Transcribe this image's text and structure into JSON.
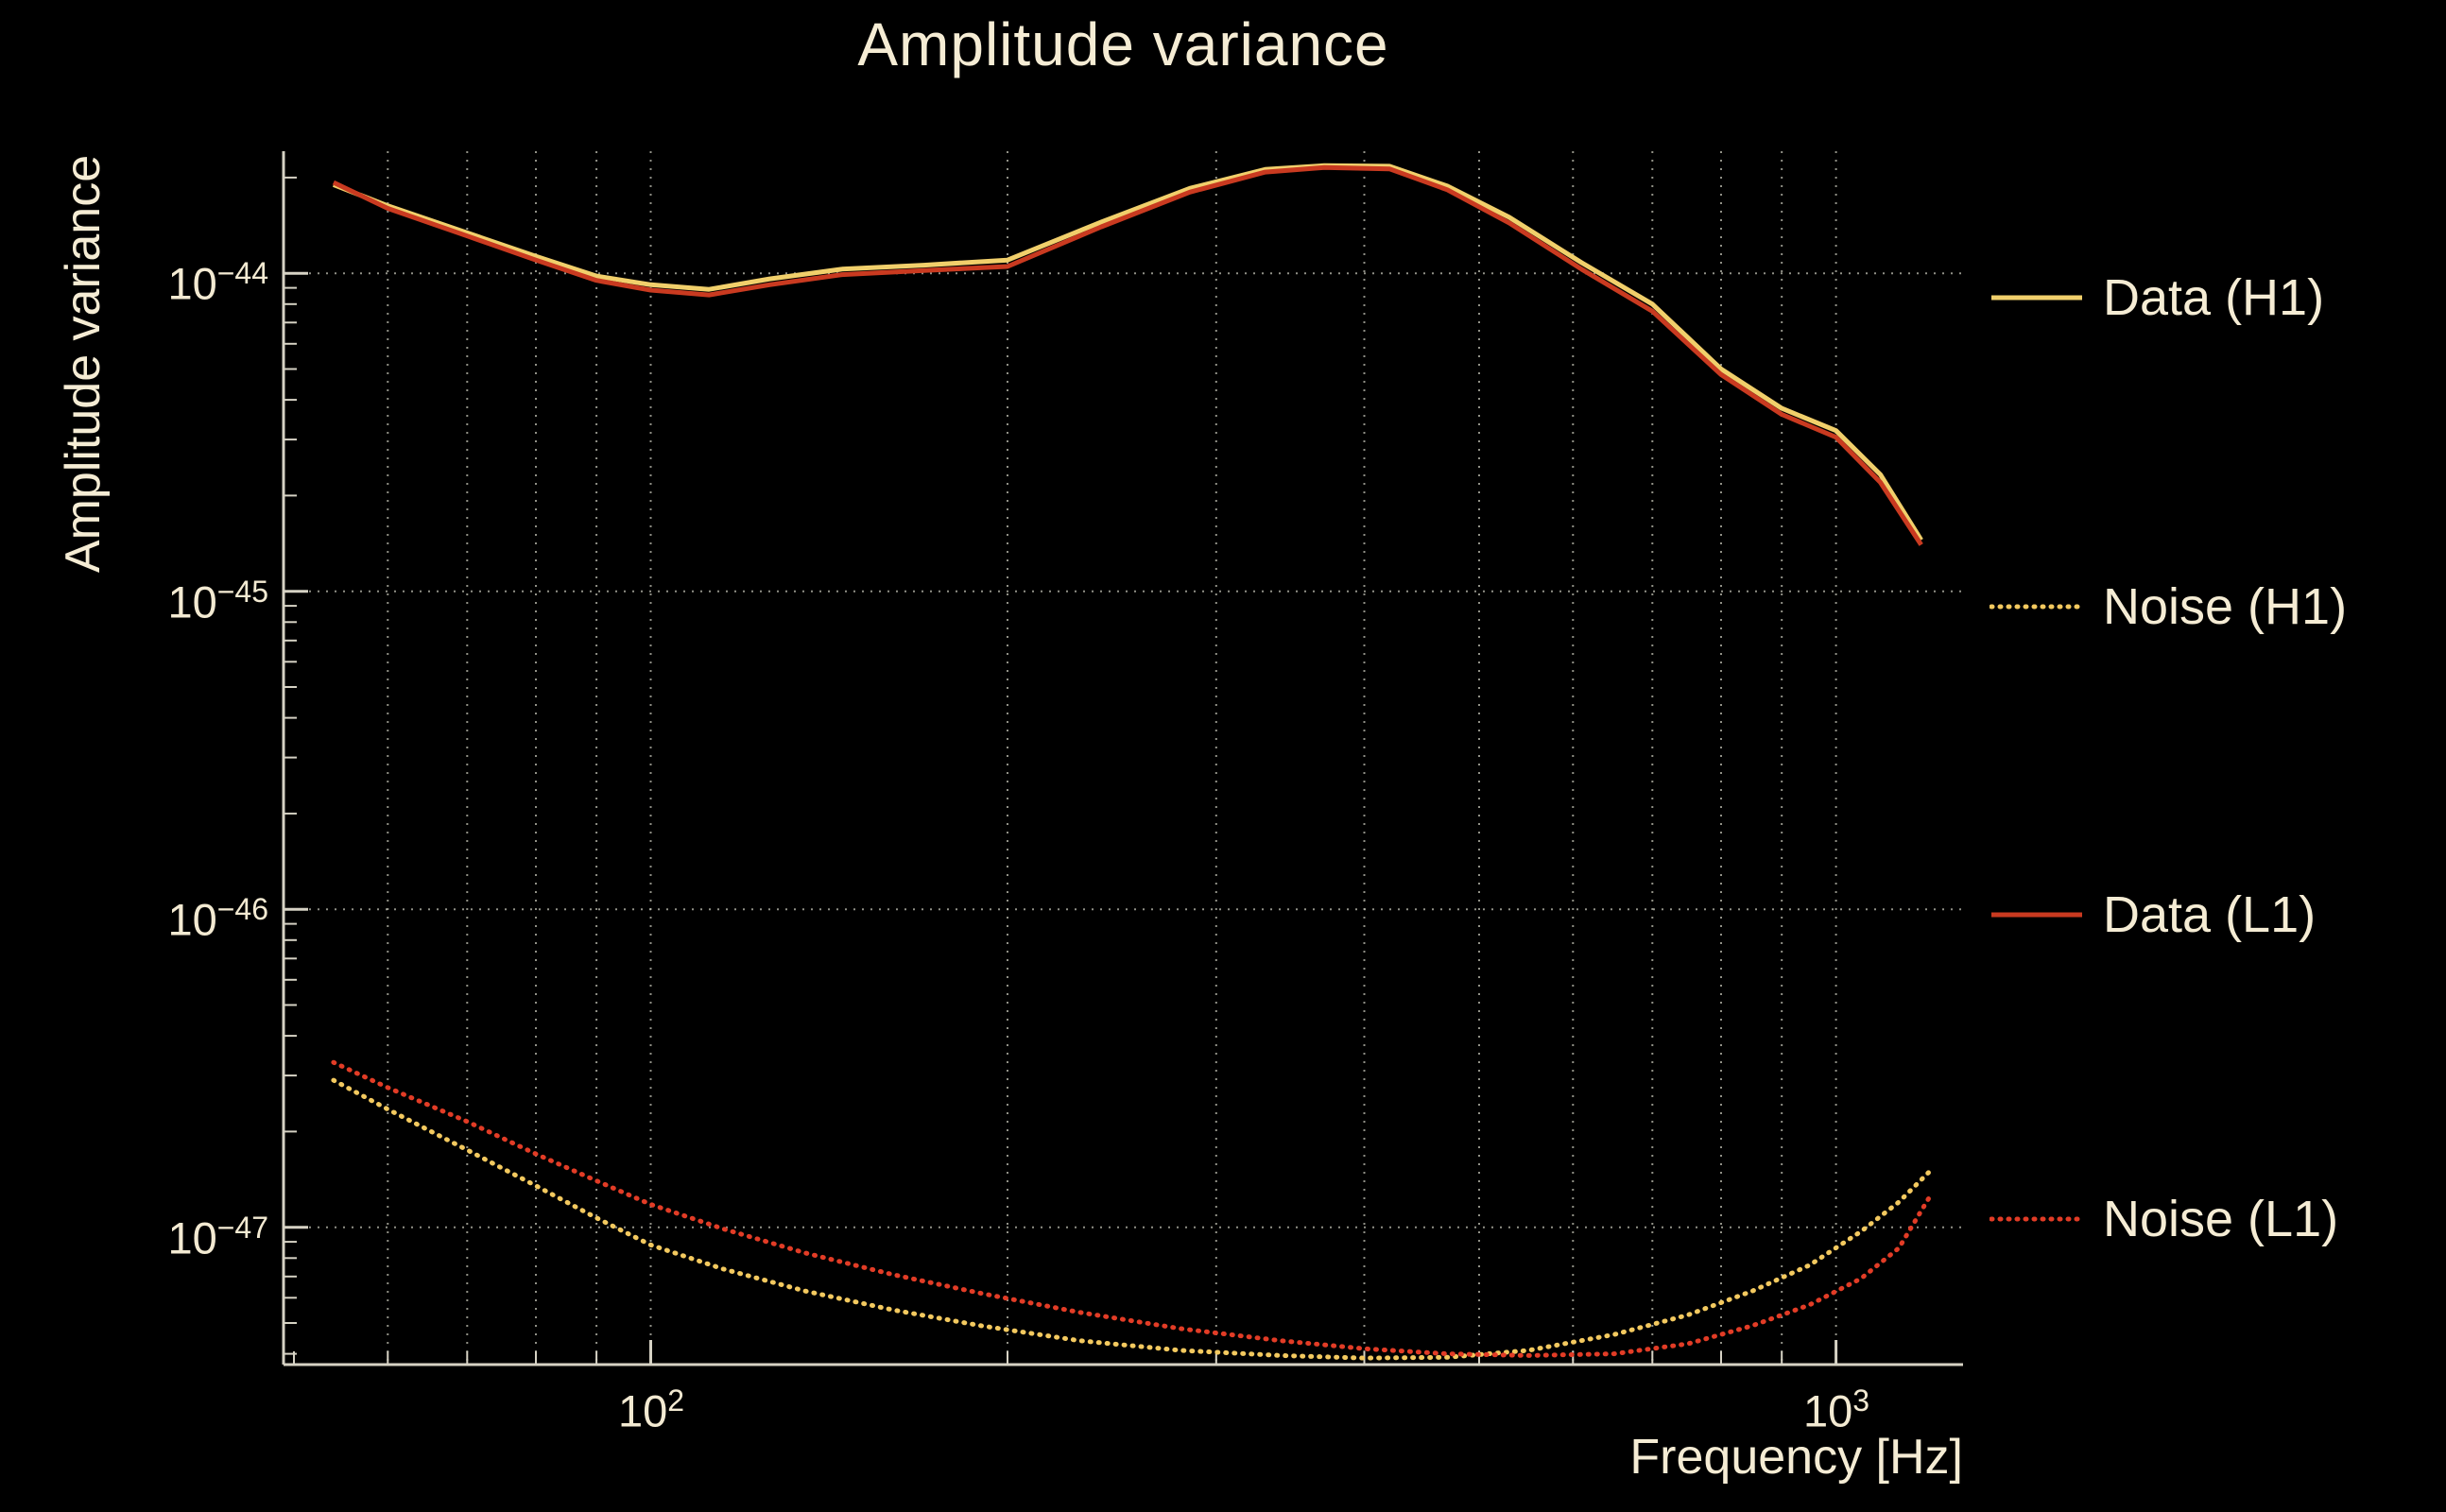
{
  "chart_data": {
    "type": "line",
    "title": "Amplitude variance",
    "xlabel": "Frequency [Hz]",
    "ylabel": "Amplitude variance",
    "x_scale": "log",
    "y_scale": "log",
    "xlim": [
      49,
      1280
    ],
    "ylim": [
      3.7e-48,
      2.42e-44
    ],
    "background": "#000000",
    "text_color": "#f5ecd4",
    "axis_color": "#d6d2c4",
    "grid_color": "#c2c2b4",
    "grid_style": "dotted",
    "legend_position": "right-outside",
    "x_major_ticks": [
      100,
      1000
    ],
    "x_minor_ticks": [
      50,
      60,
      70,
      80,
      90,
      200,
      300,
      400,
      500,
      600,
      700,
      800,
      900
    ],
    "x_gridlines": [
      60,
      70,
      80,
      90,
      100,
      200,
      300,
      400,
      500,
      600,
      700,
      800,
      900,
      1000
    ],
    "y_major_ticks": [
      1e-44,
      1e-45,
      1e-46,
      1e-47
    ],
    "legend": [
      "Data (H1)",
      "Noise (H1)",
      "Data (L1)",
      "Noise (L1)"
    ],
    "series": [
      {
        "name": "Data (H1)",
        "color": "#f1cf6b",
        "style": "solid",
        "points": [
          [
            54,
            1.9e-44
          ],
          [
            60,
            1.63e-44
          ],
          [
            70,
            1.34e-44
          ],
          [
            80,
            1.13e-44
          ],
          [
            90,
            9.8e-45
          ],
          [
            100,
            9.2e-45
          ],
          [
            112,
            8.9e-45
          ],
          [
            126,
            9.6e-45
          ],
          [
            145,
            1.03e-44
          ],
          [
            170,
            1.06e-44
          ],
          [
            200,
            1.1e-44
          ],
          [
            240,
            1.45e-44
          ],
          [
            285,
            1.85e-44
          ],
          [
            330,
            2.12e-44
          ],
          [
            370,
            2.18e-44
          ],
          [
            420,
            2.17e-44
          ],
          [
            470,
            1.88e-44
          ],
          [
            530,
            1.5e-44
          ],
          [
            610,
            1.08e-44
          ],
          [
            700,
            8e-45
          ],
          [
            800,
            5e-45
          ],
          [
            900,
            3.76e-45
          ],
          [
            1000,
            3.2e-45
          ],
          [
            1090,
            2.33e-45
          ],
          [
            1180,
            1.45e-45
          ]
        ]
      },
      {
        "name": "Noise (H1)",
        "color": "#f3c95f",
        "style": "dotted",
        "points": [
          [
            54,
            2.9e-47
          ],
          [
            60,
            2.35e-47
          ],
          [
            70,
            1.75e-47
          ],
          [
            80,
            1.35e-47
          ],
          [
            90,
            1.07e-47
          ],
          [
            100,
            8.8e-48
          ],
          [
            115,
            7.4e-48
          ],
          [
            135,
            6.3e-48
          ],
          [
            160,
            5.5e-48
          ],
          [
            190,
            4.9e-48
          ],
          [
            230,
            4.4e-48
          ],
          [
            280,
            4.1e-48
          ],
          [
            340,
            3.95e-48
          ],
          [
            400,
            3.88e-48
          ],
          [
            470,
            3.9e-48
          ],
          [
            550,
            4.1e-48
          ],
          [
            650,
            4.6e-48
          ],
          [
            750,
            5.3e-48
          ],
          [
            850,
            6.3e-48
          ],
          [
            950,
            7.6e-48
          ],
          [
            1050,
            9.7e-48
          ],
          [
            1130,
            1.2e-47
          ],
          [
            1200,
            1.5e-47
          ]
        ]
      },
      {
        "name": "Data (L1)",
        "color": "#c93a20",
        "style": "solid",
        "points": [
          [
            54,
            1.93e-44
          ],
          [
            60,
            1.6e-44
          ],
          [
            70,
            1.31e-44
          ],
          [
            80,
            1.1e-44
          ],
          [
            90,
            9.5e-45
          ],
          [
            100,
            8.85e-45
          ],
          [
            112,
            8.55e-45
          ],
          [
            126,
            9.2e-45
          ],
          [
            145,
            9.9e-45
          ],
          [
            170,
            1.02e-44
          ],
          [
            200,
            1.05e-44
          ],
          [
            240,
            1.4e-44
          ],
          [
            285,
            1.8e-44
          ],
          [
            330,
            2.08e-44
          ],
          [
            370,
            2.15e-44
          ],
          [
            420,
            2.13e-44
          ],
          [
            470,
            1.83e-44
          ],
          [
            530,
            1.44e-44
          ],
          [
            610,
            1.03e-44
          ],
          [
            700,
            7.6e-45
          ],
          [
            800,
            4.8e-45
          ],
          [
            900,
            3.6e-45
          ],
          [
            1000,
            3.05e-45
          ],
          [
            1090,
            2.2e-45
          ],
          [
            1180,
            1.4e-45
          ]
        ]
      },
      {
        "name": "Noise (L1)",
        "color": "#e23c26",
        "style": "dotted",
        "points": [
          [
            54,
            3.3e-47
          ],
          [
            60,
            2.75e-47
          ],
          [
            70,
            2.15e-47
          ],
          [
            80,
            1.7e-47
          ],
          [
            90,
            1.4e-47
          ],
          [
            100,
            1.18e-47
          ],
          [
            115,
            9.9e-48
          ],
          [
            135,
            8.3e-48
          ],
          [
            160,
            7.1e-48
          ],
          [
            190,
            6.2e-48
          ],
          [
            230,
            5.4e-48
          ],
          [
            280,
            4.8e-48
          ],
          [
            340,
            4.4e-48
          ],
          [
            400,
            4.15e-48
          ],
          [
            470,
            4e-48
          ],
          [
            550,
            3.95e-48
          ],
          [
            650,
            4e-48
          ],
          [
            750,
            4.3e-48
          ],
          [
            850,
            4.9e-48
          ],
          [
            950,
            5.7e-48
          ],
          [
            1050,
            6.9e-48
          ],
          [
            1130,
            8.6e-48
          ],
          [
            1200,
            1.25e-47
          ]
        ]
      }
    ]
  }
}
